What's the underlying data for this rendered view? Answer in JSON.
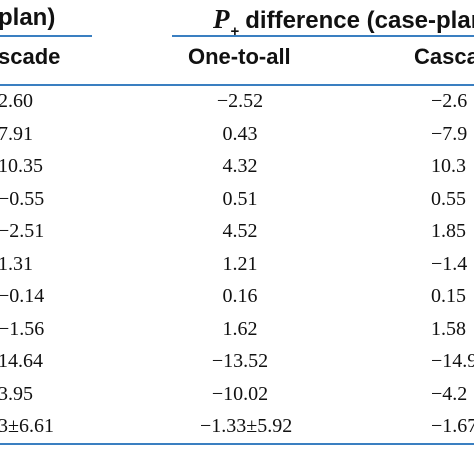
{
  "header": {
    "left_top": "plan)",
    "right_top_symbol": "P",
    "right_top_subscript": "+",
    "right_top_text": "difference (case-plan)",
    "sub_left": "scade",
    "sub_mid": "One-to-all",
    "sub_right": "Casca"
  },
  "rows": [
    {
      "c1": "2.60",
      "c2": "−2.52",
      "c3": "−2.6"
    },
    {
      "c1": "7.91",
      "c2": "0.43",
      "c3": "−7.9"
    },
    {
      "c1": "10.35",
      "c2": "4.32",
      "c3": "10.3"
    },
    {
      "c1": "−0.55",
      "c2": "0.51",
      "c3": "0.55"
    },
    {
      "c1": "−2.51",
      "c2": "4.52",
      "c3": "1.85"
    },
    {
      "c1": "1.31",
      "c2": "1.21",
      "c3": "−1.4"
    },
    {
      "c1": "−0.14",
      "c2": "0.16",
      "c3": "0.15"
    },
    {
      "c1": "−1.56",
      "c2": "1.62",
      "c3": "1.58"
    },
    {
      "c1": "14.64",
      "c2": "−13.52",
      "c3": "−14.9"
    },
    {
      "c1": "3.95",
      "c2": "−10.02",
      "c3": "−4.2"
    },
    {
      "c1": "3±6.61",
      "c2": "−1.33±5.92",
      "c3": "−1.67±"
    }
  ],
  "colors": {
    "rule": "#3a7fc1",
    "text": "#111111",
    "background": "#ffffff"
  }
}
